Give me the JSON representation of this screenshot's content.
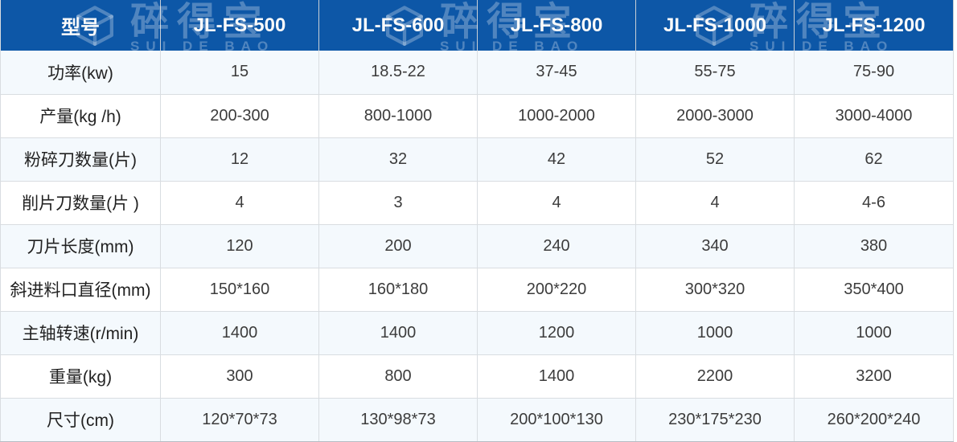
{
  "brand": {
    "name_cn": "碎得宝",
    "name_en": "SUI DE BAO"
  },
  "table": {
    "header": {
      "model_label": "型号",
      "models": [
        "JL-FS-500",
        "JL-FS-600",
        "JL-FS-800",
        "JL-FS-1000",
        "JL-FS-1200"
      ]
    },
    "rows": [
      {
        "label": "功率(kw)",
        "values": [
          "15",
          "18.5-22",
          "37-45",
          "55-75",
          "75-90"
        ]
      },
      {
        "label": "产量(kg /h)",
        "values": [
          "200-300",
          "800-1000",
          "1000-2000",
          "2000-3000",
          "3000-4000"
        ]
      },
      {
        "label": "粉碎刀数量(片)",
        "values": [
          "12",
          "32",
          "42",
          "52",
          "62"
        ]
      },
      {
        "label": "削片刀数量(片 )",
        "values": [
          "4",
          "3",
          "4",
          "4",
          "4-6"
        ]
      },
      {
        "label": "刀片长度(mm)",
        "values": [
          "120",
          "200",
          "240",
          "340",
          "380"
        ]
      },
      {
        "label": "斜进料口直径(mm)",
        "values": [
          "150*160",
          "160*180",
          "200*220",
          "300*320",
          "350*400"
        ]
      },
      {
        "label": "主轴转速(r/min)",
        "values": [
          "1400",
          "1400",
          "1200",
          "1000",
          "1000"
        ]
      },
      {
        "label": "重量(kg)",
        "values": [
          "300",
          "800",
          "1400",
          "2200",
          "3200"
        ]
      },
      {
        "label": "尺寸(cm)",
        "values": [
          "120*70*73",
          "130*98*73",
          "200*100*130",
          "230*175*230",
          "260*200*240"
        ]
      }
    ]
  },
  "colors": {
    "header_bg": "#0d57a7",
    "header_divider": "#c9cfd6",
    "watermark": "rgba(255,255,255,0.28)",
    "row_alt": "#f4f9fd",
    "row_white": "#ffffff",
    "grid": "#d9dde1",
    "bottom_border": "#b7bcc3",
    "label_text": "#222222",
    "value_text": "#3c3c3c"
  }
}
